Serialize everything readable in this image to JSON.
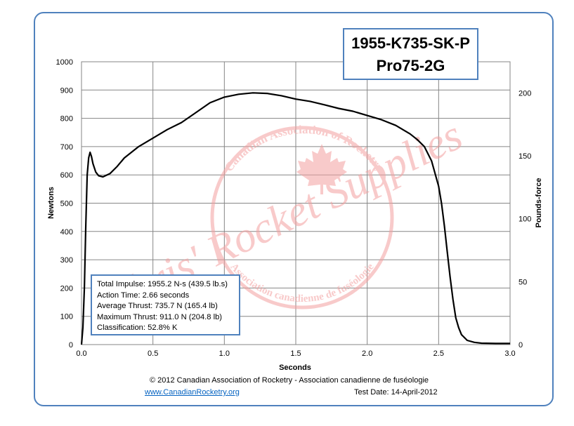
{
  "title_box": {
    "line1": "1955-K735-SK-P",
    "line2": "Pro75-2G"
  },
  "stats": {
    "total_impulse": "Total Impulse: 1955.2 N-s (439.5 lb.s)",
    "action_time": "Action Time: 2.66 seconds",
    "average_thrust": "Average Thrust: 735.7 N (165.4 lb)",
    "maximum_thrust": "Maximum Thrust: 911.0 N (204.8 lb)",
    "classification": "Classification: 52.8% K"
  },
  "footer": {
    "copyright": "© 2012 Canadian Association of Rocketry - Association canadienne de fuséologie",
    "website": "www.CanadianRocketry.org",
    "test_date": "Test  Date: 14-April-2012"
  },
  "watermark": {
    "main": "Chris' Rocket Supplies",
    "ring_outer": "Canadian Association of Rocketry",
    "ring_inner": "Association canadienne de fuséologie",
    "color": "#f4a0a0"
  },
  "colors": {
    "frame": "#4f81bd",
    "grid": "#868686",
    "curve": "#000000"
  },
  "chart_data": {
    "type": "line",
    "title": "1955-K735-SK-P Pro75-2G",
    "xlabel": "Seconds",
    "ylabel": "Newtons",
    "y2label": "Pounds-force",
    "xlim": [
      0,
      3.0
    ],
    "ylim": [
      0,
      1000
    ],
    "y2lim": [
      0,
      224.8
    ],
    "x_ticks": [
      "0.0",
      "0.5",
      "1.0",
      "1.5",
      "2.0",
      "2.5",
      "3.0"
    ],
    "y_ticks": [
      "0",
      "100",
      "200",
      "300",
      "400",
      "500",
      "600",
      "700",
      "800",
      "900",
      "1000"
    ],
    "y2_ticks": [
      "0",
      "50",
      "100",
      "150",
      "200"
    ],
    "y2_tick_values": [
      0,
      50,
      100,
      150,
      200
    ],
    "grid": true,
    "series": [
      {
        "x": [
          0.0,
          0.01,
          0.02,
          0.03,
          0.04,
          0.05,
          0.06,
          0.07,
          0.08,
          0.1,
          0.12,
          0.15,
          0.2,
          0.25,
          0.3,
          0.4,
          0.5,
          0.6,
          0.7,
          0.8,
          0.9,
          1.0,
          1.1,
          1.2,
          1.3,
          1.4,
          1.5,
          1.6,
          1.7,
          1.8,
          1.9,
          2.0,
          2.1,
          2.2,
          2.3,
          2.35,
          2.4,
          2.45,
          2.5,
          2.52,
          2.54,
          2.56,
          2.58,
          2.6,
          2.62,
          2.64,
          2.66,
          2.7,
          2.75,
          2.8,
          2.9,
          3.0
        ],
        "y": [
          0,
          60,
          200,
          420,
          600,
          660,
          680,
          665,
          640,
          610,
          597,
          593,
          605,
          630,
          660,
          700,
          730,
          760,
          785,
          820,
          855,
          875,
          885,
          890,
          888,
          880,
          868,
          860,
          848,
          835,
          825,
          810,
          795,
          775,
          745,
          725,
          700,
          650,
          560,
          500,
          420,
          330,
          240,
          160,
          95,
          60,
          35,
          15,
          8,
          5,
          4,
          4
        ]
      }
    ]
  }
}
